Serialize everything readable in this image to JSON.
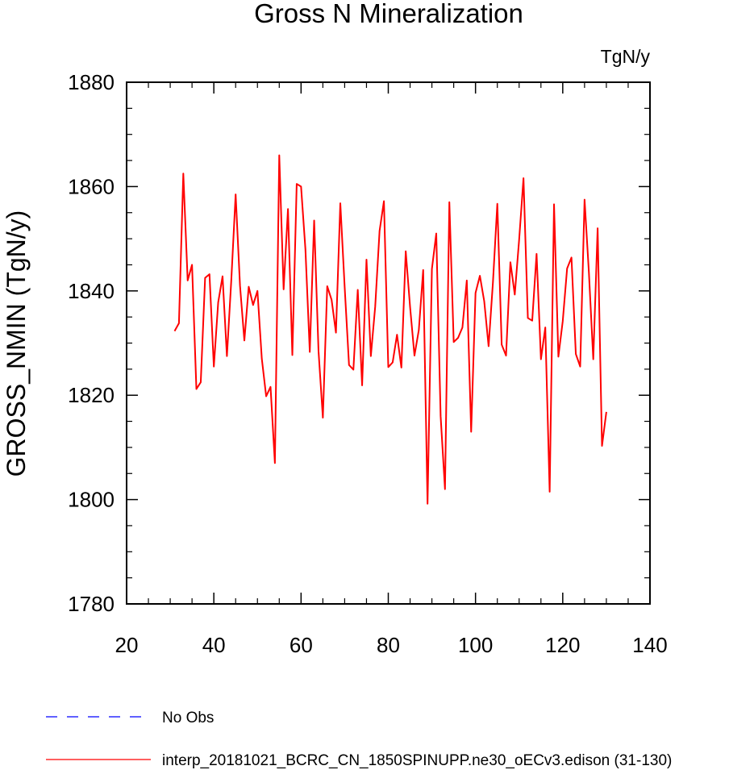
{
  "chart_data": {
    "type": "line",
    "title": "Gross N Mineralization",
    "units_label": "TgN/y",
    "ylabel": "GROSS_NMIN  (TgN/y)",
    "xlabel": "",
    "xlim": [
      20,
      140
    ],
    "ylim": [
      1780,
      1880
    ],
    "x_ticks": [
      20,
      40,
      60,
      80,
      100,
      120,
      140
    ],
    "y_ticks": [
      1780,
      1800,
      1820,
      1840,
      1860,
      1880
    ],
    "x_minor_step": 5,
    "y_minor_step": 5,
    "grid": false,
    "legend_position": "bottom-left",
    "series": [
      {
        "name": "interp_20181021_BCRC_CN_1850SPINUPP.ne30_oECv3.edison (31-130)",
        "color": "#ff0000",
        "x_start": 31,
        "x_step": 1,
        "values": [
          1832.3,
          1833.8,
          1862.5,
          1842.0,
          1845.0,
          1821.2,
          1822.5,
          1842.5,
          1843.2,
          1825.5,
          1837.8,
          1842.8,
          1827.5,
          1842.0,
          1858.5,
          1841.0,
          1830.5,
          1840.8,
          1837.3,
          1840.0,
          1827.0,
          1819.8,
          1821.6,
          1807.0,
          1866.0,
          1840.3,
          1855.7,
          1827.7,
          1860.5,
          1860.0,
          1848.0,
          1828.3,
          1853.5,
          1828.5,
          1815.7,
          1840.9,
          1838.3,
          1832.0,
          1856.8,
          1840.7,
          1825.8,
          1824.9,
          1840.2,
          1821.9,
          1846.0,
          1827.5,
          1837.0,
          1851.5,
          1857.2,
          1825.4,
          1826.3,
          1831.6,
          1825.3,
          1847.6,
          1836.9,
          1827.6,
          1832.5,
          1844.0,
          1799.2,
          1844.2,
          1851.0,
          1816.0,
          1802.0,
          1857.0,
          1830.2,
          1831.0,
          1833.0,
          1842.0,
          1813.0,
          1839.6,
          1842.9,
          1838.0,
          1829.4,
          1841.7,
          1856.7,
          1829.7,
          1827.6,
          1845.5,
          1839.3,
          1849.8,
          1861.6,
          1834.8,
          1834.3,
          1847.1,
          1826.9,
          1833.0,
          1801.5,
          1856.6,
          1827.4,
          1834.2,
          1844.3,
          1846.4,
          1827.9,
          1825.5,
          1857.5,
          1843.5,
          1826.9,
          1852.0,
          1810.3,
          1816.8
        ]
      }
    ]
  },
  "legend": {
    "entries": [
      {
        "label": "No Obs",
        "color": "#0000ff",
        "style": "dashed"
      },
      {
        "label": "interp_20181021_BCRC_CN_1850SPINUPP.ne30_oECv3.edison (31-130)",
        "color": "#ff0000",
        "style": "solid"
      }
    ]
  }
}
